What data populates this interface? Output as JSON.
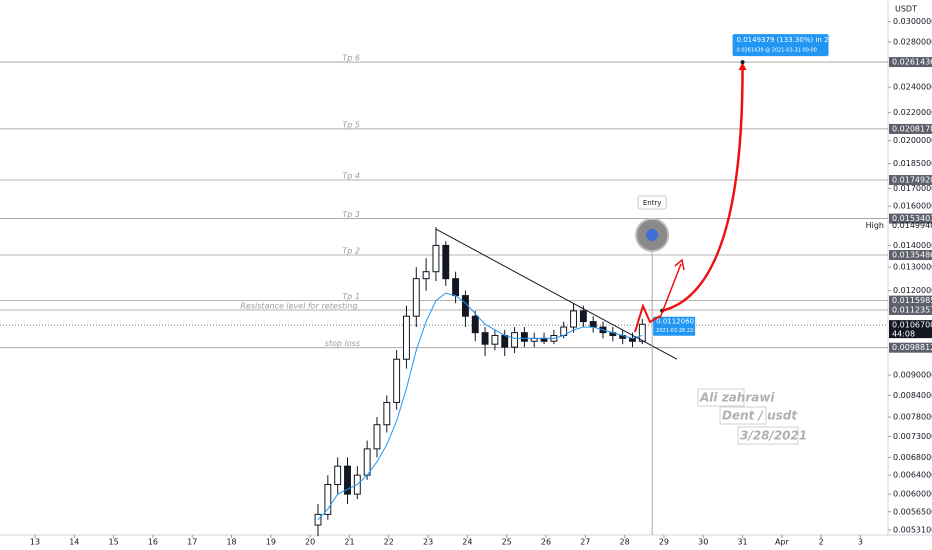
{
  "chart_data": {
    "type": "candlestick",
    "currency": "USDT",
    "log_scale": true,
    "ylim": [
      0.00522,
      0.0323
    ],
    "xlim": [
      12.11,
      34.7
    ],
    "yticks": [
      {
        "value": 0.03,
        "label": "0.0300000"
      },
      {
        "value": 0.028,
        "label": "0.0280000"
      },
      {
        "value": 0.024,
        "label": "0.0240000"
      },
      {
        "value": 0.022,
        "label": "0.0220000"
      },
      {
        "value": 0.02,
        "label": "0.0200000"
      },
      {
        "value": 0.0185,
        "label": "0.0185000"
      },
      {
        "value": 0.017,
        "label": "0.0170000"
      },
      {
        "value": 0.016,
        "label": "0.0160000"
      },
      {
        "value": 0.014,
        "label": "0.0140000"
      },
      {
        "value": 0.013,
        "label": "0.0130000"
      },
      {
        "value": 0.012,
        "label": "0.0120000"
      },
      {
        "value": 0.009,
        "label": "0.0090000"
      },
      {
        "value": 0.0084,
        "label": "0.0084000"
      },
      {
        "value": 0.0078,
        "label": "0.0078000"
      },
      {
        "value": 0.0073,
        "label": "0.0073000"
      },
      {
        "value": 0.0068,
        "label": "0.0068000"
      },
      {
        "value": 0.0064,
        "label": "0.0064000"
      },
      {
        "value": 0.006,
        "label": "0.0060000"
      },
      {
        "value": 0.00565,
        "label": "0.0056500"
      },
      {
        "value": 0.00531,
        "label": "0.0053100"
      }
    ],
    "xticks": [
      13,
      14,
      15,
      16,
      17,
      18,
      19,
      20,
      21,
      22,
      23,
      24,
      25,
      26,
      27,
      28,
      29,
      30,
      31,
      {
        "value": 32,
        "label": "Apr"
      },
      {
        "value": 33,
        "label": "2"
      },
      {
        "value": 34,
        "label": "3"
      }
    ],
    "x": [
      20.2,
      20.45,
      20.7,
      20.95,
      21.2,
      21.45,
      21.7,
      21.95,
      22.2,
      22.45,
      22.7,
      22.95,
      23.2,
      23.45,
      23.7,
      23.95,
      24.2,
      24.45,
      24.7,
      24.95,
      25.2,
      25.45,
      25.7,
      25.95,
      26.2,
      26.45,
      26.7,
      26.95,
      27.2,
      27.45,
      27.7,
      27.95,
      28.2,
      28.45
    ],
    "open": [
      0.0054,
      0.0056,
      0.0062,
      0.0066,
      0.006,
      0.0064,
      0.007,
      0.0076,
      0.0082,
      0.0095,
      0.011,
      0.0125,
      0.0128,
      0.014,
      0.0125,
      0.0118,
      0.011,
      0.0104,
      0.01,
      0.0103,
      0.0099,
      0.0104,
      0.0101,
      0.0102,
      0.0101,
      0.0103,
      0.0106,
      0.0112,
      0.0108,
      0.0106,
      0.0104,
      0.0103,
      0.0102,
      0.0101
    ],
    "high": [
      0.0058,
      0.0064,
      0.0068,
      0.0068,
      0.0066,
      0.0072,
      0.0078,
      0.0084,
      0.0098,
      0.0114,
      0.013,
      0.0134,
      0.0149,
      0.0142,
      0.0128,
      0.012,
      0.0112,
      0.0106,
      0.0105,
      0.0105,
      0.0106,
      0.0106,
      0.0104,
      0.0104,
      0.0105,
      0.0108,
      0.0115,
      0.0114,
      0.011,
      0.0108,
      0.0106,
      0.0105,
      0.0104,
      0.0109
    ],
    "low": [
      0.0052,
      0.0055,
      0.006,
      0.0058,
      0.0059,
      0.0063,
      0.0068,
      0.0074,
      0.008,
      0.0092,
      0.0106,
      0.012,
      0.0124,
      0.0122,
      0.0115,
      0.0106,
      0.0101,
      0.0096,
      0.0098,
      0.0096,
      0.0097,
      0.0099,
      0.0099,
      0.01,
      0.01,
      0.0102,
      0.0104,
      0.0106,
      0.0104,
      0.0102,
      0.0101,
      0.01,
      0.0099,
      0.01
    ],
    "close": [
      0.0056,
      0.0062,
      0.0066,
      0.006,
      0.0064,
      0.007,
      0.0076,
      0.0082,
      0.0095,
      0.011,
      0.0125,
      0.0128,
      0.014,
      0.0125,
      0.0118,
      0.011,
      0.0104,
      0.01,
      0.0103,
      0.0099,
      0.0104,
      0.0101,
      0.0102,
      0.0101,
      0.0103,
      0.0106,
      0.0112,
      0.0108,
      0.0106,
      0.0104,
      0.0103,
      0.0102,
      0.0101,
      0.0107
    ],
    "ma": [
      0.0055,
      0.0057,
      0.006,
      0.0061,
      0.0062,
      0.0064,
      0.0067,
      0.0071,
      0.0077,
      0.0086,
      0.0098,
      0.0108,
      0.0116,
      0.0119,
      0.0118,
      0.0115,
      0.0111,
      0.0107,
      0.0105,
      0.0103,
      0.0102,
      0.0102,
      0.0102,
      0.0102,
      0.0102,
      0.0103,
      0.0105,
      0.0106,
      0.0106,
      0.0105,
      0.0104,
      0.0103,
      0.0102,
      0.0103
    ],
    "levels": [
      {
        "name": "Tp 6",
        "value": 0.0261436,
        "label": "0.0261436"
      },
      {
        "name": "Tp 5",
        "value": 0.0208178,
        "label": "0.0208178"
      },
      {
        "name": "Tp 4",
        "value": 0.017492,
        "label": "0.0174920"
      },
      {
        "name": "Tp 3",
        "value": 0.0153403,
        "label": "0.0153403"
      },
      {
        "name": "Tp 2",
        "value": 0.0135486,
        "label": "0.0135486"
      },
      {
        "name": "Tp 1",
        "value": 0.0115985,
        "label": "0.0115985"
      },
      {
        "name": "Resistance level for retesting.",
        "value": 0.0112357,
        "label": "0.0112357"
      },
      {
        "name": "stop loss",
        "value": 0.0098812,
        "label": "0.0098812"
      }
    ],
    "high_marker": {
      "name": "High",
      "value": 0.014994,
      "label": "0.0149940"
    },
    "last_price": {
      "value": 0.01067,
      "label": "0.0106700",
      "countdown": "44:08"
    },
    "trendline": {
      "x": [
        23.2,
        29.33
      ],
      "y": [
        0.0148,
        0.0095
      ]
    },
    "entry": {
      "label": "Entry",
      "x": 28.7,
      "price": 0.011206,
      "price_label": "0.0112060",
      "time": "2021-03-28 22:00"
    },
    "projection": {
      "x": [
        28.7,
        31
      ],
      "y": [
        0.011206,
        0.0261439
      ],
      "summary": "0.0149379 (133.30%) in 2d 2h",
      "detail": "0.0261439 @ 2021-03-31  00:00"
    },
    "annotations": [
      "Ali zahrawi",
      "Dent / usdt",
      "3/28/2021"
    ]
  }
}
